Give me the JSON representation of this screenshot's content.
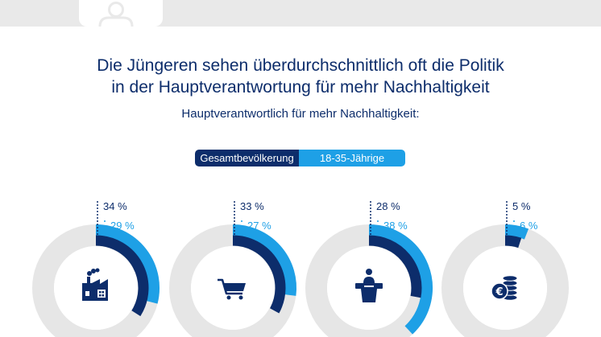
{
  "title_lines": [
    "Die Jüngeren sehen überdurchschnittlich oft die Politik",
    "in der Hauptverantwortung für mehr Nachhaltigkeit"
  ],
  "subtitle": "Hauptverantwortlich für mehr Nachhaltigkeit:",
  "colors": {
    "series_1": "#0d2d6b",
    "series_2": "#1ea0e6",
    "ring_background": "#e6e6e6",
    "text": "#0d2d6b"
  },
  "icons": [
    "person-icon",
    "factory-icon",
    "shopping-cart-icon",
    "lectern-icon",
    "euro-coins-icon"
  ],
  "chart_data": {
    "type": "donut",
    "legend": [
      "Gesamtbevölkerung",
      "18-35-Jährige"
    ],
    "unit": "%",
    "series": [
      {
        "name": "Gesamtbevölkerung",
        "values": [
          34,
          33,
          28,
          5
        ],
        "labels": [
          "34 %",
          "33 %",
          "28 %",
          "5 %"
        ]
      },
      {
        "name": "18-35-Jährige",
        "values": [
          29,
          27,
          38,
          6
        ],
        "labels": [
          "29 %",
          "27 %",
          "38 %",
          "6 %"
        ]
      }
    ],
    "categories_icons": [
      "factory-icon",
      "shopping-cart-icon",
      "lectern-icon",
      "euro-coins-icon"
    ]
  }
}
